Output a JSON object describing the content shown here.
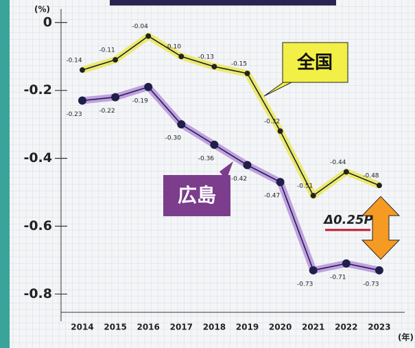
{
  "chart_data": {
    "type": "line",
    "y_label": "(%)",
    "x_label": "(年)",
    "categories": [
      "2014",
      "2015",
      "2016",
      "2017",
      "2018",
      "2019",
      "2020",
      "2021",
      "2022",
      "2023"
    ],
    "series": [
      {
        "name": "全国",
        "color": "#222222",
        "highlight": "#e9e85a",
        "values": [
          -0.14,
          -0.11,
          -0.04,
          -0.1,
          -0.13,
          -0.15,
          -0.32,
          -0.51,
          -0.44,
          -0.48
        ],
        "value_labels": [
          "-0.14",
          "-0.11",
          "-0.04",
          "-0.10",
          "-0.13",
          "-0.15",
          "-0.32",
          "-0.51",
          "-0.44",
          "-0.48"
        ]
      },
      {
        "name": "広島",
        "color": "#1f1f4a",
        "highlight": "#b791dc",
        "values": [
          -0.23,
          -0.22,
          -0.19,
          -0.3,
          -0.36,
          -0.42,
          -0.47,
          -0.73,
          -0.71,
          -0.73
        ],
        "value_labels": [
          "-0.23",
          "-0.22",
          "-0.19",
          "-0.30",
          "-0.36",
          "-0.42",
          "-0.47",
          "-0.73",
          "-0.71",
          "-0.73"
        ]
      }
    ],
    "ylim": [
      -0.88,
      0.04
    ],
    "yticks": [
      0,
      -0.2,
      -0.4,
      -0.6,
      -0.8
    ],
    "annotation": "Δ0.25P"
  }
}
